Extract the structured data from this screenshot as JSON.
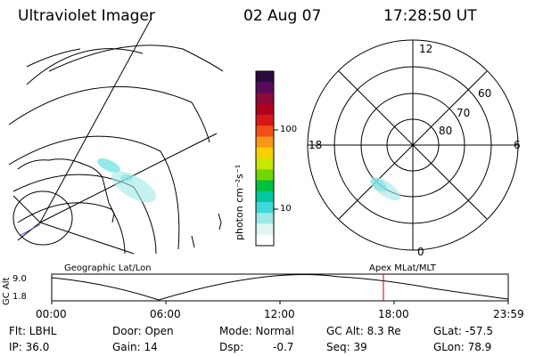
{
  "header": {
    "title": "Ultraviolet Imager",
    "date": "02 Aug 07",
    "time": "17:28:50 UT"
  },
  "colorbar": {
    "unit_label": "photon cm⁻²s⁻¹",
    "ticks": [
      "100",
      "10"
    ],
    "colors": [
      "#2b0a3c",
      "#5a0a5a",
      "#8a0a3a",
      "#b00020",
      "#d81818",
      "#f05018",
      "#f89818",
      "#f8d000",
      "#c8e800",
      "#70d800",
      "#00c040",
      "#00c8a0",
      "#40d8d8",
      "#a0e8e8",
      "#e0f4f4",
      "#ffffff"
    ]
  },
  "polar": {
    "lat_labels": [
      "60",
      "70",
      "80"
    ],
    "mlt_labels": {
      "top": "12",
      "left": "18",
      "right": "6",
      "bottom": "0"
    }
  },
  "timeline": {
    "left_title": "Geographic Lat/Lon",
    "right_title": "Apex MLat/MLT",
    "axis_label": "GC Alt",
    "y_ticks": [
      "9.0",
      "1.8"
    ],
    "x_ticks": [
      "00:00",
      "06:00",
      "12:00",
      "18:00",
      "23:59"
    ],
    "marker_color": "#cc0000"
  },
  "status": {
    "flt": "Flt: LBHL",
    "ip": "IP: 36.0",
    "door": "Door: Open",
    "gain": "Gain: 14",
    "mode": "Mode: Normal",
    "dsp_label": "Dsp:",
    "dsp_value": "-0.7",
    "gcalt": "GC Alt: 8.3 Re",
    "seq": "Seq: 39",
    "glat": "GLat: -57.5",
    "glon": "GLon: 78.9"
  }
}
